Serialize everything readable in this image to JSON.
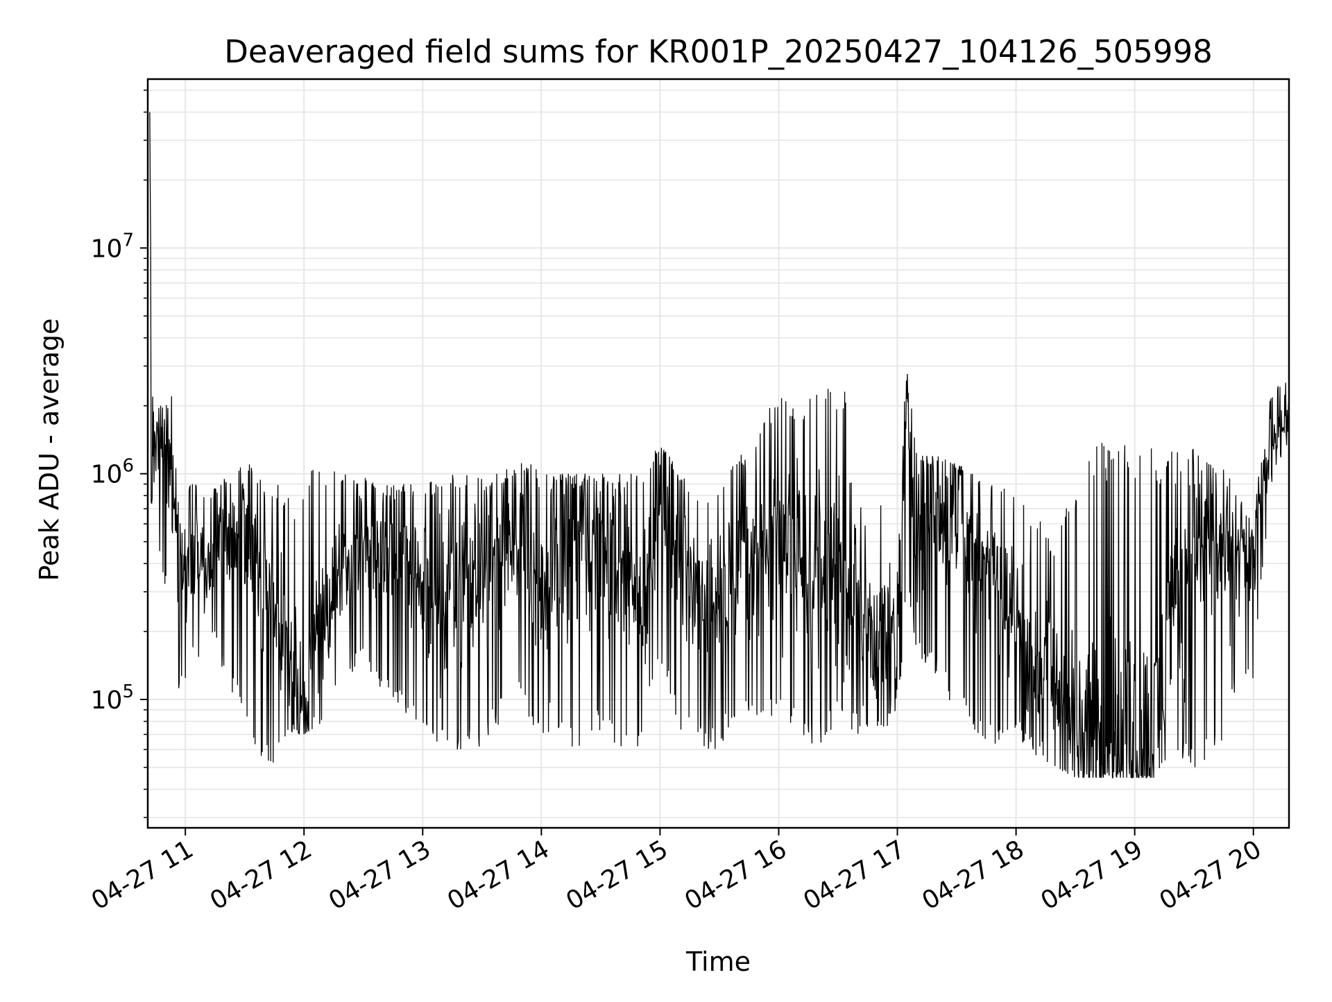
{
  "chart_data": {
    "type": "line",
    "title": "Deaveraged field sums for KR001P_20250427_104126_505998",
    "xlabel": "Time",
    "ylabel": "Peak ADU - average",
    "x_scale": "time",
    "y_scale": "log",
    "xlim": [
      "2025-04-27 10:41",
      "2025-04-27 20:18"
    ],
    "ylim": [
      27000,
      56000000
    ],
    "x_ticks": [
      "04-27 11",
      "04-27 12",
      "04-27 13",
      "04-27 14",
      "04-27 15",
      "04-27 16",
      "04-27 17",
      "04-27 18",
      "04-27 19",
      "04-27 20"
    ],
    "y_ticks": [
      {
        "value": 100000,
        "mantissa": "10",
        "exponent": "5"
      },
      {
        "value": 1000000,
        "mantissa": "10",
        "exponent": "6"
      },
      {
        "value": 10000000,
        "mantissa": "10",
        "exponent": "7"
      }
    ],
    "grid": true,
    "line_color": "#000000",
    "series": [
      {
        "x": [
          "2025-04-27 10:42",
          "2025-04-27 10:43",
          "2025-04-27 10:45",
          "2025-04-27 10:50",
          "2025-04-27 10:55",
          "2025-04-27 11:00",
          "2025-04-27 11:05",
          "2025-04-27 11:10",
          "2025-04-27 11:15",
          "2025-04-27 11:20",
          "2025-04-27 11:25",
          "2025-04-27 11:30",
          "2025-04-27 11:35",
          "2025-04-27 11:40",
          "2025-04-27 11:45",
          "2025-04-27 11:50",
          "2025-04-27 11:55",
          "2025-04-27 12:00",
          "2025-04-27 12:10",
          "2025-04-27 12:20",
          "2025-04-27 12:30",
          "2025-04-27 12:40",
          "2025-04-27 12:50",
          "2025-04-27 13:00",
          "2025-04-27 13:10",
          "2025-04-27 13:20",
          "2025-04-27 13:30",
          "2025-04-27 13:40",
          "2025-04-27 13:50",
          "2025-04-27 14:00",
          "2025-04-27 14:10",
          "2025-04-27 14:20",
          "2025-04-27 14:30",
          "2025-04-27 14:40",
          "2025-04-27 14:50",
          "2025-04-27 15:00",
          "2025-04-27 15:10",
          "2025-04-27 15:20",
          "2025-04-27 15:30",
          "2025-04-27 15:40",
          "2025-04-27 15:50",
          "2025-04-27 16:00",
          "2025-04-27 16:10",
          "2025-04-27 16:20",
          "2025-04-27 16:30",
          "2025-04-27 16:40",
          "2025-04-27 16:50",
          "2025-04-27 17:00",
          "2025-04-27 17:05",
          "2025-04-27 17:10",
          "2025-04-27 17:20",
          "2025-04-27 17:30",
          "2025-04-27 17:40",
          "2025-04-27 17:50",
          "2025-04-27 18:00",
          "2025-04-27 18:10",
          "2025-04-27 18:20",
          "2025-04-27 18:30",
          "2025-04-27 18:40",
          "2025-04-27 18:50",
          "2025-04-27 19:00",
          "2025-04-27 19:10",
          "2025-04-27 19:20",
          "2025-04-27 19:30",
          "2025-04-27 19:40",
          "2025-04-27 19:50",
          "2025-04-27 20:00",
          "2025-04-27 20:05",
          "2025-04-27 20:10",
          "2025-04-27 20:18"
        ],
        "y": [
          40000000,
          1600000,
          1400000,
          1300000,
          700000,
          400000,
          500000,
          350000,
          450000,
          500000,
          550000,
          600000,
          450000,
          300000,
          250000,
          200000,
          150000,
          100000,
          250000,
          400000,
          500000,
          450000,
          400000,
          300000,
          300000,
          350000,
          400000,
          450000,
          500000,
          250000,
          450000,
          500000,
          450000,
          400000,
          250000,
          800000,
          400000,
          300000,
          300000,
          450000,
          400000,
          600000,
          450000,
          350000,
          400000,
          300000,
          200000,
          200000,
          1800000,
          600000,
          700000,
          600000,
          500000,
          350000,
          250000,
          150000,
          120000,
          70000,
          80000,
          70000,
          75000,
          70000,
          300000,
          450000,
          500000,
          450000,
          400000,
          900000,
          1500000,
          1800000
        ],
        "band_low": [
          400000,
          700000,
          600000,
          300000,
          100000,
          120000,
          150000,
          160000,
          180000,
          120000,
          100000,
          90000,
          60000,
          50000,
          50000,
          60000,
          70000,
          70000,
          80000,
          120000,
          150000,
          100000,
          90000,
          70000,
          60000,
          60000,
          60000,
          80000,
          100000,
          60000,
          60000,
          60000,
          70000,
          60000,
          60000,
          150000,
          70000,
          60000,
          60000,
          90000,
          80000,
          80000,
          70000,
          60000,
          80000,
          70000,
          70000,
          80000,
          300000,
          150000,
          120000,
          80000,
          70000,
          60000,
          70000,
          55000,
          50000,
          45000,
          45000,
          45000,
          45000,
          45000,
          50000,
          50000,
          50000,
          100000,
          120000,
          400000,
          1000000,
          1400000
        ],
        "band_high": [
          40000000,
          2400000,
          2000000,
          2000000,
          2500000,
          900000,
          900000,
          800000,
          900000,
          1000000,
          1100000,
          1200000,
          1000000,
          900000,
          900000,
          900000,
          800000,
          1000000,
          1100000,
          1000000,
          1000000,
          900000,
          900000,
          900000,
          1000000,
          1000000,
          1000000,
          1000000,
          1200000,
          1000000,
          1000000,
          1000000,
          1000000,
          1000000,
          1000000,
          1400000,
          1000000,
          800000,
          900000,
          1200000,
          1500000,
          2500000,
          2000000,
          2500000,
          2500000,
          2000000,
          900000,
          800000,
          3300000,
          1200000,
          1200000,
          1100000,
          1000000,
          900000,
          800000,
          700000,
          500000,
          1000000,
          1400000,
          1400000,
          1400000,
          1300000,
          1300000,
          1300000,
          1200000,
          900000,
          600000,
          1700000,
          2400000,
          2700000
        ]
      }
    ]
  }
}
